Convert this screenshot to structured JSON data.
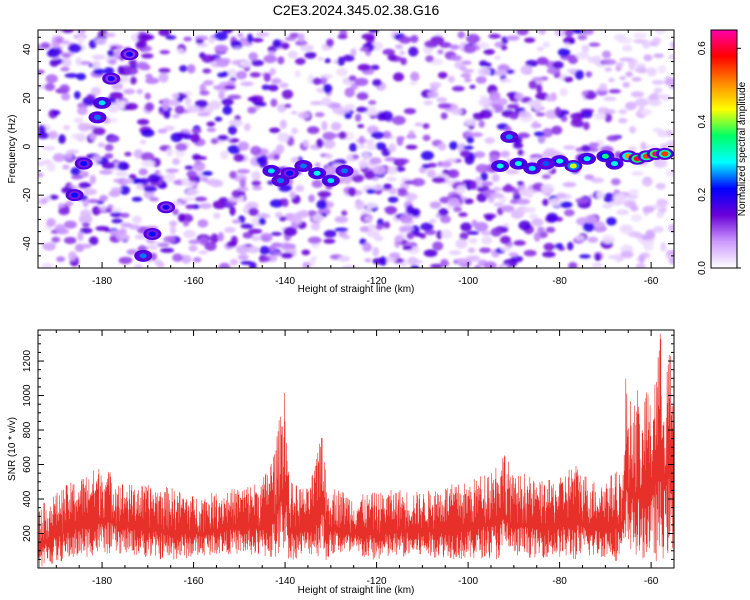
{
  "title": "C2E3.2024.345.02.38.G16",
  "chart_data": [
    {
      "type": "heatmap",
      "xlabel": "Height of straight line (km)",
      "ylabel": "Frequency (Hz)",
      "xlim": [
        -194,
        -55
      ],
      "ylim": [
        -50,
        48
      ],
      "xticks": [
        "-180",
        "-160",
        "-140",
        "-120",
        "-100",
        "-80",
        "-60"
      ],
      "yticks": [
        "-40",
        "-20",
        "0",
        "20",
        "40"
      ],
      "colorbar": {
        "label": "Normalized spectral amplitude",
        "range": [
          0,
          0.65
        ],
        "ticks": [
          "0.0",
          "0.2",
          "0.4",
          "0.6"
        ],
        "colormap": [
          "#ffffff",
          "#cc99ff",
          "#6a00d8",
          "#0000ff",
          "#00ffff",
          "#00ff66",
          "#ffff00",
          "#ff8800",
          "#ff0000",
          "#ff00aa"
        ]
      },
      "features": [
        {
          "x": -186,
          "y": -20,
          "value": 0.22
        },
        {
          "x": -184,
          "y": -7,
          "value": 0.22
        },
        {
          "x": -181,
          "y": 12,
          "value": 0.25
        },
        {
          "x": -180,
          "y": 18,
          "value": 0.28
        },
        {
          "x": -178,
          "y": 28,
          "value": 0.2
        },
        {
          "x": -174,
          "y": 38,
          "value": 0.2
        },
        {
          "x": -171,
          "y": -45,
          "value": 0.25
        },
        {
          "x": -169,
          "y": -36,
          "value": 0.22
        },
        {
          "x": -166,
          "y": -25,
          "value": 0.2
        },
        {
          "x": -143,
          "y": -10,
          "value": 0.28
        },
        {
          "x": -141,
          "y": -14,
          "value": 0.25
        },
        {
          "x": -139,
          "y": -11,
          "value": 0.22
        },
        {
          "x": -136,
          "y": -8,
          "value": 0.25
        },
        {
          "x": -133,
          "y": -11,
          "value": 0.3
        },
        {
          "x": -130,
          "y": -14,
          "value": 0.28
        },
        {
          "x": -127,
          "y": -10,
          "value": 0.25
        },
        {
          "x": -93,
          "y": -8,
          "value": 0.3
        },
        {
          "x": -91,
          "y": 4,
          "value": 0.26
        },
        {
          "x": -89,
          "y": -7,
          "value": 0.3
        },
        {
          "x": -86,
          "y": -9,
          "value": 0.28
        },
        {
          "x": -83,
          "y": -7,
          "value": 0.24
        },
        {
          "x": -80,
          "y": -6,
          "value": 0.3
        },
        {
          "x": -77,
          "y": -8,
          "value": 0.42
        },
        {
          "x": -74,
          "y": -5,
          "value": 0.3
        },
        {
          "x": -70,
          "y": -4,
          "value": 0.35
        },
        {
          "x": -68,
          "y": -7,
          "value": 0.3
        },
        {
          "x": -65,
          "y": -4,
          "value": 0.5
        },
        {
          "x": -63,
          "y": -5,
          "value": 0.6
        },
        {
          "x": -61,
          "y": -4,
          "value": 0.55
        },
        {
          "x": -59,
          "y": -3,
          "value": 0.62
        },
        {
          "x": -57,
          "y": -3,
          "value": 0.55
        }
      ]
    },
    {
      "type": "line",
      "xlabel": "Height of straight line (km)",
      "ylabel": "SNR (10 * v/v)",
      "xlim": [
        -194,
        -55
      ],
      "ylim": [
        0,
        1380
      ],
      "xticks": [
        "-180",
        "-160",
        "-140",
        "-120",
        "-100",
        "-80",
        "-60"
      ],
      "yticks": [
        "200",
        "400",
        "600",
        "800",
        "1000",
        "1200"
      ],
      "color": "#e8302a",
      "series": [
        {
          "x": [
            -194,
            -188,
            -180,
            -175,
            -170,
            -165,
            -160,
            -155,
            -150,
            -145,
            -142,
            -140,
            -139.5,
            -139,
            -137,
            -135,
            -133,
            -132,
            -131.5,
            -131,
            -129,
            -125,
            -120,
            -115,
            -110,
            -105,
            -100,
            -96,
            -93,
            -92,
            -90,
            -88,
            -85,
            -80,
            -77,
            -74,
            -72,
            -70,
            -68,
            -66,
            -65.5,
            -65,
            -64,
            -63,
            -62,
            -61,
            -60,
            -59,
            -58,
            -57,
            -56,
            -55
          ],
          "y": [
            350,
            480,
            600,
            490,
            480,
            470,
            420,
            440,
            470,
            510,
            720,
            1130,
            700,
            500,
            480,
            460,
            650,
            900,
            700,
            480,
            470,
            420,
            440,
            460,
            440,
            480,
            500,
            560,
            640,
            700,
            520,
            560,
            500,
            520,
            620,
            540,
            500,
            520,
            560,
            580,
            1170,
            1000,
            950,
            1050,
            780,
            1160,
            900,
            1240,
            1380,
            1100,
            1320,
            900
          ],
          "min_y": [
            0,
            40,
            80,
            80,
            60,
            40,
            60,
            80,
            80,
            60,
            40,
            100,
            60,
            40,
            60,
            80,
            60,
            80,
            60,
            40,
            80,
            60,
            40,
            60,
            60,
            60,
            40,
            60,
            40,
            80,
            60,
            60,
            60,
            60,
            40,
            60,
            60,
            60,
            40,
            40,
            60,
            120,
            80,
            40,
            60,
            40,
            80,
            40,
            0,
            80,
            60,
            60
          ]
        }
      ]
    }
  ]
}
